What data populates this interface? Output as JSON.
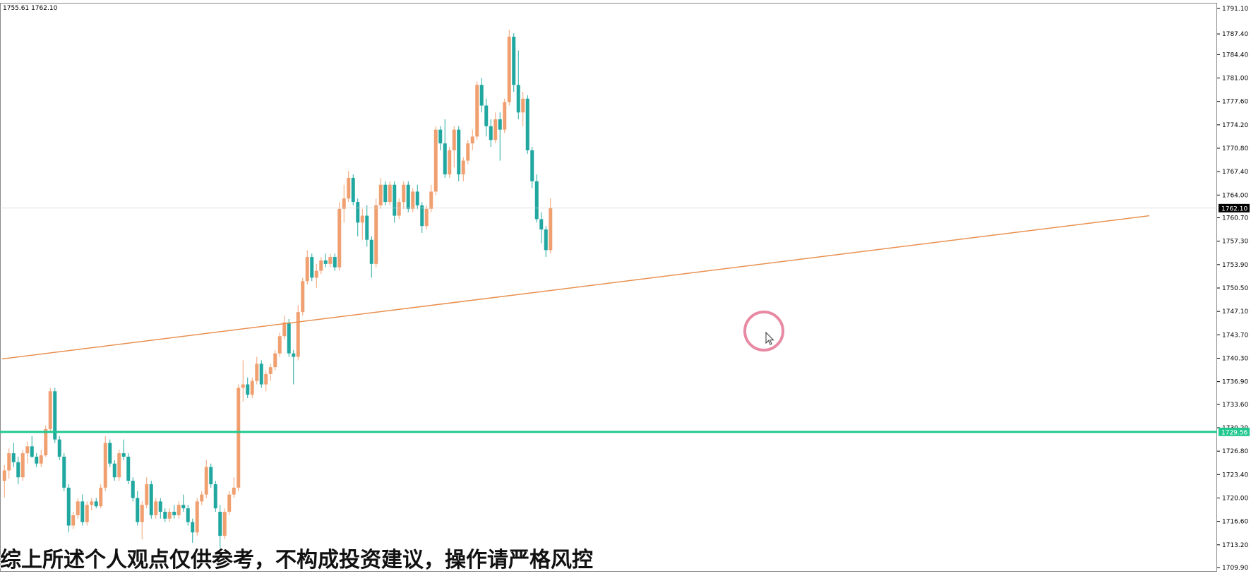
{
  "header": {
    "ohlc_text": "1755.61 1762.10"
  },
  "subtitle": "综上所述个人观点仅供参考，不构成投资建议，操作请严格风控",
  "colors": {
    "bull": "#f0a070",
    "bear": "#20a8a0",
    "trendline": "#e89050",
    "hline": "#20c890",
    "price_tag": "#000000"
  },
  "chart_data": {
    "type": "candlestick",
    "ylim": [
      1709.9,
      1791.1
    ],
    "y_ticks": [
      "1791.10",
      "1787.40",
      "1784.40",
      "1781.00",
      "1777.60",
      "1774.20",
      "1770.80",
      "1767.40",
      "1764.00",
      "1760.70",
      "1757.30",
      "1753.90",
      "1750.50",
      "1747.10",
      "1743.70",
      "1740.30",
      "1736.90",
      "1733.60",
      "1730.20",
      "1726.80",
      "1723.40",
      "1720.00",
      "1716.60",
      "1713.20",
      "1709.90"
    ],
    "current_price": "1762.10",
    "horizontal_line": {
      "price": 1729.6,
      "label": "1729.56"
    },
    "trendline": {
      "start": {
        "bar": 0,
        "price": 1740.2
      },
      "end": {
        "bar": 250,
        "price": 1761.0
      }
    },
    "candles": [
      [
        1722.5,
        1724.8,
        1720.1,
        1724.0
      ],
      [
        1724.0,
        1727.2,
        1722.8,
        1726.5
      ],
      [
        1726.5,
        1728.0,
        1724.5,
        1725.2
      ],
      [
        1725.2,
        1726.0,
        1722.0,
        1723.0
      ],
      [
        1723.0,
        1727.0,
        1722.5,
        1726.5
      ],
      [
        1726.5,
        1728.2,
        1725.0,
        1727.5
      ],
      [
        1727.5,
        1729.0,
        1725.8,
        1726.0
      ],
      [
        1726.0,
        1726.5,
        1724.5,
        1725.0
      ],
      [
        1725.0,
        1727.0,
        1724.5,
        1726.2
      ],
      [
        1726.2,
        1730.5,
        1726.0,
        1730.0
      ],
      [
        1730.0,
        1736.0,
        1729.5,
        1735.5
      ],
      [
        1735.5,
        1736.0,
        1728.0,
        1728.5
      ],
      [
        1728.5,
        1729.0,
        1725.5,
        1726.0
      ],
      [
        1726.0,
        1726.5,
        1721.0,
        1721.5
      ],
      [
        1721.5,
        1722.0,
        1715.0,
        1716.0
      ],
      [
        1716.0,
        1718.0,
        1715.5,
        1717.5
      ],
      [
        1717.5,
        1720.0,
        1717.0,
        1719.5
      ],
      [
        1719.5,
        1720.5,
        1716.0,
        1716.5
      ],
      [
        1716.5,
        1719.5,
        1716.0,
        1719.0
      ],
      [
        1719.0,
        1720.0,
        1718.2,
        1719.5
      ],
      [
        1719.5,
        1720.0,
        1718.5,
        1718.8
      ],
      [
        1718.8,
        1722.0,
        1718.5,
        1721.5
      ],
      [
        1721.5,
        1729.0,
        1721.0,
        1728.0
      ],
      [
        1728.0,
        1728.5,
        1724.5,
        1725.0
      ],
      [
        1725.0,
        1725.5,
        1722.5,
        1723.0
      ],
      [
        1723.0,
        1727.0,
        1722.5,
        1726.5
      ],
      [
        1726.5,
        1728.5,
        1725.5,
        1726.0
      ],
      [
        1726.0,
        1726.5,
        1722.0,
        1722.5
      ],
      [
        1722.5,
        1723.0,
        1719.5,
        1720.0
      ],
      [
        1720.0,
        1721.0,
        1716.0,
        1716.5
      ],
      [
        1716.5,
        1719.5,
        1714.0,
        1719.0
      ],
      [
        1719.0,
        1723.0,
        1718.5,
        1722.0
      ],
      [
        1722.0,
        1722.5,
        1717.0,
        1717.5
      ],
      [
        1717.5,
        1720.0,
        1717.0,
        1719.5
      ],
      [
        1719.5,
        1720.0,
        1717.0,
        1718.0
      ],
      [
        1718.0,
        1718.5,
        1716.5,
        1717.0
      ],
      [
        1717.0,
        1718.5,
        1716.5,
        1718.0
      ],
      [
        1718.0,
        1719.0,
        1717.0,
        1717.5
      ],
      [
        1717.5,
        1719.5,
        1717.0,
        1719.0
      ],
      [
        1719.0,
        1720.5,
        1718.0,
        1718.5
      ],
      [
        1718.5,
        1719.0,
        1716.0,
        1716.5
      ],
      [
        1716.5,
        1717.0,
        1713.5,
        1715.0
      ],
      [
        1715.0,
        1720.0,
        1714.5,
        1719.5
      ],
      [
        1719.5,
        1721.0,
        1719.0,
        1720.5
      ],
      [
        1720.5,
        1725.5,
        1720.0,
        1724.5
      ],
      [
        1724.5,
        1725.0,
        1721.5,
        1722.0
      ],
      [
        1722.0,
        1722.5,
        1718.0,
        1718.5
      ],
      [
        1718.0,
        1719.0,
        1711.0,
        1714.5
      ],
      [
        1714.5,
        1718.5,
        1714.0,
        1718.0
      ],
      [
        1718.0,
        1721.0,
        1717.5,
        1720.5
      ],
      [
        1720.5,
        1723.0,
        1720.0,
        1721.5
      ],
      [
        1721.5,
        1736.5,
        1721.0,
        1736.0
      ],
      [
        1736.0,
        1740.0,
        1734.0,
        1736.5
      ],
      [
        1736.5,
        1737.5,
        1734.5,
        1735.0
      ],
      [
        1735.0,
        1737.5,
        1734.5,
        1737.0
      ],
      [
        1737.0,
        1740.5,
        1736.5,
        1739.5
      ],
      [
        1739.5,
        1740.0,
        1736.0,
        1736.5
      ],
      [
        1736.5,
        1738.5,
        1735.5,
        1738.0
      ],
      [
        1738.0,
        1739.5,
        1737.0,
        1739.0
      ],
      [
        1739.0,
        1741.5,
        1738.5,
        1741.0
      ],
      [
        1741.0,
        1744.0,
        1740.5,
        1743.5
      ],
      [
        1743.5,
        1746.5,
        1743.0,
        1745.5
      ],
      [
        1745.5,
        1746.0,
        1740.5,
        1741.0
      ],
      [
        1741.0,
        1741.5,
        1736.5,
        1740.5
      ],
      [
        1740.5,
        1748.0,
        1740.0,
        1747.0
      ],
      [
        1747.0,
        1752.0,
        1746.5,
        1751.5
      ],
      [
        1751.5,
        1756.0,
        1751.0,
        1755.0
      ],
      [
        1755.0,
        1755.5,
        1751.5,
        1752.0
      ],
      [
        1752.0,
        1754.0,
        1750.5,
        1753.0
      ],
      [
        1753.0,
        1755.0,
        1752.5,
        1754.5
      ],
      [
        1754.5,
        1755.5,
        1753.5,
        1754.0
      ],
      [
        1754.0,
        1755.5,
        1753.5,
        1755.0
      ],
      [
        1755.0,
        1755.5,
        1753.0,
        1753.5
      ],
      [
        1753.5,
        1763.0,
        1753.0,
        1762.0
      ],
      [
        1762.0,
        1765.5,
        1760.0,
        1763.5
      ],
      [
        1763.5,
        1767.5,
        1763.0,
        1766.5
      ],
      [
        1766.5,
        1767.0,
        1762.5,
        1763.0
      ],
      [
        1763.0,
        1763.5,
        1758.0,
        1760.0
      ],
      [
        1760.0,
        1762.0,
        1757.5,
        1761.0
      ],
      [
        1761.0,
        1762.5,
        1756.5,
        1757.5
      ],
      [
        1757.5,
        1758.0,
        1752.0,
        1754.0
      ],
      [
        1754.0,
        1763.5,
        1753.5,
        1762.5
      ],
      [
        1762.5,
        1766.5,
        1762.0,
        1765.5
      ],
      [
        1765.5,
        1766.0,
        1762.5,
        1763.0
      ],
      [
        1763.0,
        1766.0,
        1762.5,
        1765.5
      ],
      [
        1765.5,
        1766.0,
        1760.0,
        1761.0
      ],
      [
        1761.0,
        1763.5,
        1760.5,
        1763.0
      ],
      [
        1763.0,
        1766.0,
        1762.0,
        1765.5
      ],
      [
        1765.5,
        1766.0,
        1761.5,
        1762.0
      ],
      [
        1762.0,
        1765.0,
        1761.5,
        1764.5
      ],
      [
        1764.5,
        1765.5,
        1762.0,
        1762.5
      ],
      [
        1762.5,
        1763.0,
        1758.5,
        1759.5
      ],
      [
        1759.5,
        1762.5,
        1759.0,
        1762.0
      ],
      [
        1762.0,
        1765.5,
        1761.5,
        1764.5
      ],
      [
        1764.5,
        1774.0,
        1764.0,
        1773.5
      ],
      [
        1773.5,
        1774.0,
        1770.5,
        1771.5
      ],
      [
        1771.5,
        1775.0,
        1766.5,
        1767.0
      ],
      [
        1767.0,
        1771.0,
        1766.5,
        1770.5
      ],
      [
        1770.5,
        1774.0,
        1768.0,
        1773.5
      ],
      [
        1773.5,
        1774.0,
        1766.0,
        1767.0
      ],
      [
        1767.0,
        1769.5,
        1766.0,
        1769.0
      ],
      [
        1769.0,
        1772.0,
        1768.5,
        1771.5
      ],
      [
        1771.5,
        1773.5,
        1770.5,
        1772.5
      ],
      [
        1772.5,
        1780.5,
        1772.0,
        1780.0
      ],
      [
        1780.0,
        1781.0,
        1776.0,
        1777.0
      ],
      [
        1777.0,
        1778.0,
        1772.5,
        1774.0
      ],
      [
        1774.0,
        1775.0,
        1771.0,
        1772.0
      ],
      [
        1772.0,
        1776.0,
        1771.5,
        1775.0
      ],
      [
        1775.0,
        1776.0,
        1769.0,
        1773.5
      ],
      [
        1773.5,
        1778.0,
        1773.0,
        1777.5
      ],
      [
        1777.5,
        1788.0,
        1777.0,
        1787.0
      ],
      [
        1787.0,
        1787.5,
        1779.0,
        1780.0
      ],
      [
        1780.0,
        1785.0,
        1775.0,
        1776.0
      ],
      [
        1776.0,
        1779.0,
        1774.0,
        1778.0
      ],
      [
        1778.0,
        1778.5,
        1770.0,
        1770.5
      ],
      [
        1770.5,
        1771.0,
        1765.0,
        1766.0
      ],
      [
        1766.0,
        1767.0,
        1760.0,
        1760.5
      ],
      [
        1760.5,
        1761.5,
        1757.0,
        1759.0
      ],
      [
        1759.0,
        1759.5,
        1755.0,
        1756.0
      ],
      [
        1756.0,
        1763.5,
        1755.5,
        1762.1
      ]
    ]
  }
}
